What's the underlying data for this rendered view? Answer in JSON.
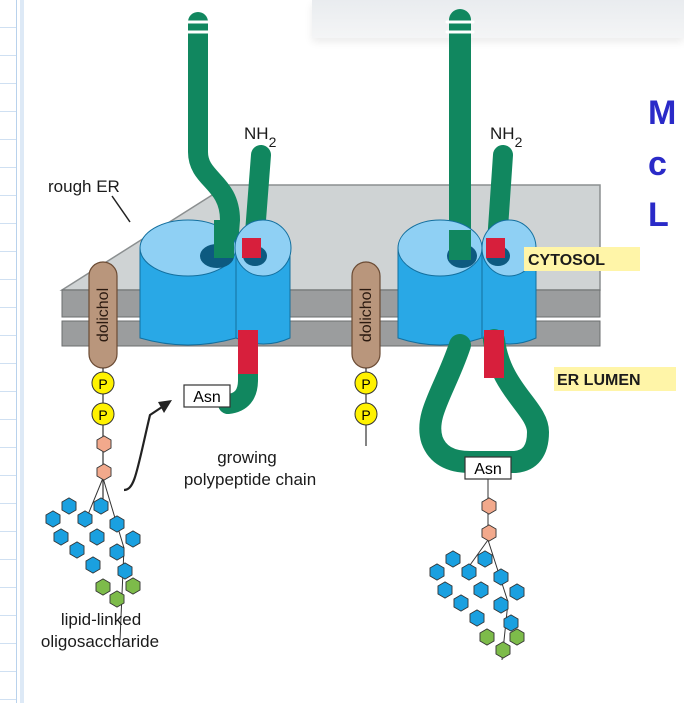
{
  "slide_title_fragments": [
    "M",
    "c",
    "L"
  ],
  "labels": {
    "rough_er": "rough ER",
    "nh2_left": "NH2",
    "nh2_right": "NH2",
    "cytosol": "CYTOSOL",
    "er_lumen": "ER LUMEN",
    "dolichol_left": "dolichol",
    "dolichol_center": "dolichol",
    "phosphate": "P",
    "asn_left": "Asn",
    "asn_right": "Asn",
    "growing_chain_line1": "growing",
    "growing_chain_line2": "polypeptide chain",
    "lipid_linked_line1": "lipid-linked",
    "lipid_linked_line2": "oligosaccharide"
  },
  "colors": {
    "polypeptide_green": "#11875f",
    "translocon_blue": "#29a8e6",
    "translocon_light": "#8fd0f4",
    "signal_red": "#d71f3c",
    "membrane_gray": "#9b9d9e",
    "er_top_gray": "#cfd3d4",
    "dolichol_tan": "#b9967c",
    "phosphate_yellow": "#fff200",
    "sugar_blue": "#1aa0e0",
    "sugar_green": "#7dbb4a",
    "sugar_salmon": "#f2a98c",
    "label_highlight": "#fff5a8",
    "title_blue": "#2a2ac8"
  }
}
